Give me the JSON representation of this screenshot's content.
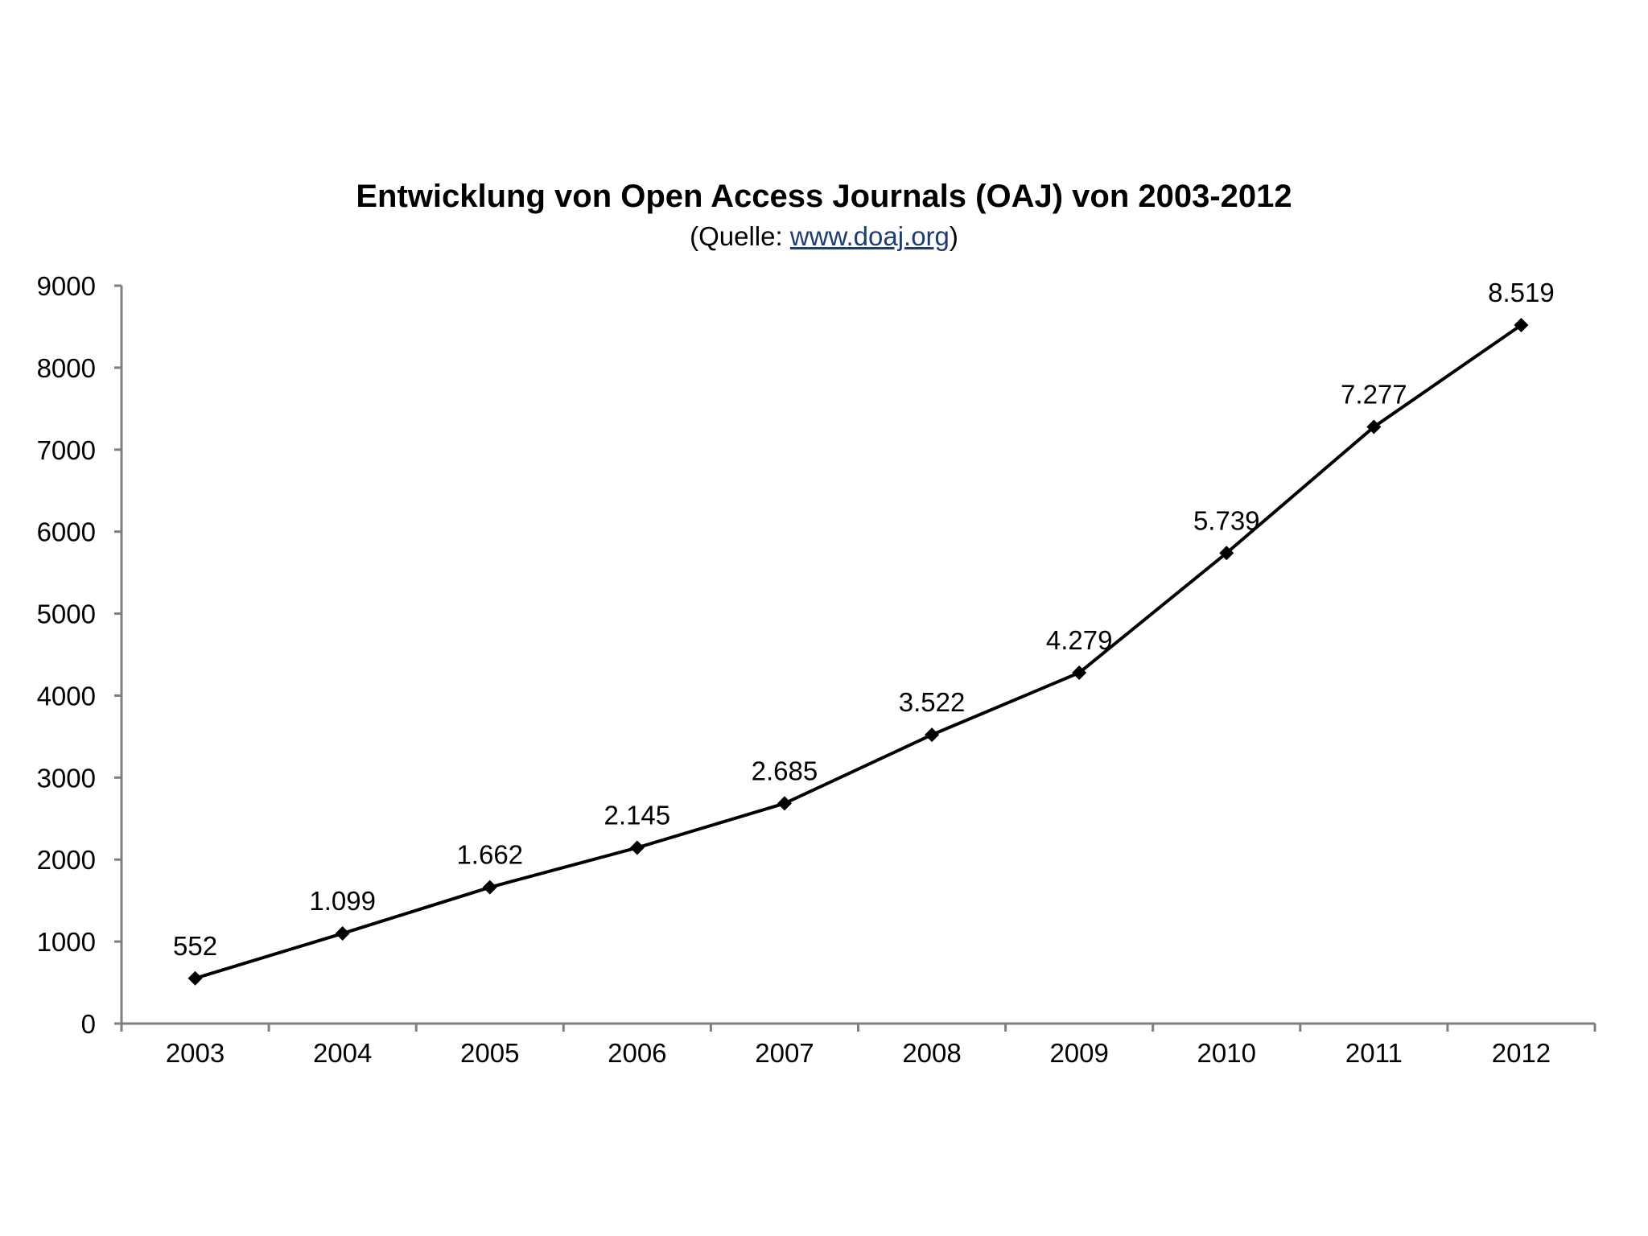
{
  "chart_data": {
    "type": "line",
    "title": "Entwicklung von Open Access Journals (OAJ) von 2003-2012",
    "subtitle_prefix": "(Quelle: ",
    "subtitle_link": "www.doaj.org",
    "subtitle_suffix": ")",
    "xlabel": "",
    "ylabel": "",
    "ylim": [
      0,
      9000
    ],
    "yticks": [
      0,
      1000,
      2000,
      3000,
      4000,
      5000,
      6000,
      7000,
      8000,
      9000
    ],
    "grid": false,
    "categories": [
      "2003",
      "2004",
      "2005",
      "2006",
      "2007",
      "2008",
      "2009",
      "2010",
      "2011",
      "2012"
    ],
    "series": [
      {
        "name": "OAJ",
        "values": [
          552,
          1099,
          1662,
          2145,
          2685,
          3522,
          4279,
          5739,
          7277,
          8519
        ],
        "labels": [
          "552",
          "1.099",
          "1.662",
          "2.145",
          "2.685",
          "3.522",
          "4.279",
          "5.739",
          "7.277",
          "8.519"
        ],
        "color": "#000000",
        "marker": "diamond"
      }
    ],
    "axis_color": "#7f7f7f"
  }
}
